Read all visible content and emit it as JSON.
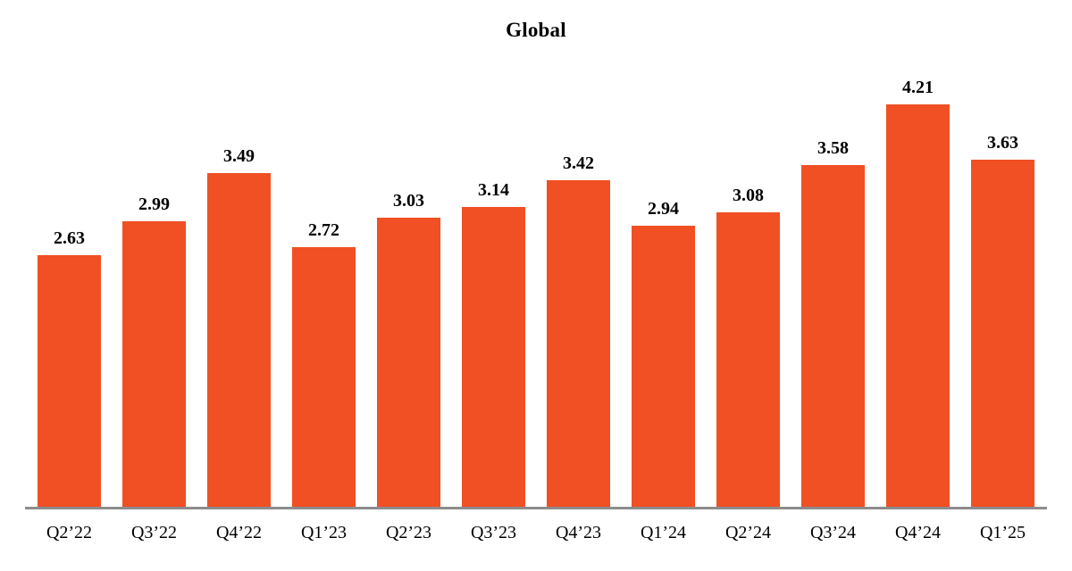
{
  "chart_data": {
    "type": "bar",
    "title": "Global",
    "categories": [
      "Q2’22",
      "Q3’22",
      "Q4’22",
      "Q1’23",
      "Q2’23",
      "Q3’23",
      "Q4’23",
      "Q1’24",
      "Q2’24",
      "Q3’24",
      "Q4’24",
      "Q1’25"
    ],
    "values": [
      2.63,
      2.99,
      3.49,
      2.72,
      3.03,
      3.14,
      3.42,
      2.94,
      3.08,
      3.58,
      4.21,
      3.63
    ],
    "value_labels": [
      "2.63",
      "2.99",
      "3.49",
      "2.72",
      "3.03",
      "3.14",
      "3.42",
      "2.94",
      "3.08",
      "3.58",
      "4.21",
      "3.63"
    ],
    "xlabel": "",
    "ylabel": "",
    "ylim": [
      0,
      4.67
    ],
    "grid": false,
    "legend": null,
    "bar_color": "#F05023",
    "axis_color": "#8C8C8C",
    "text_color": "#000000"
  }
}
